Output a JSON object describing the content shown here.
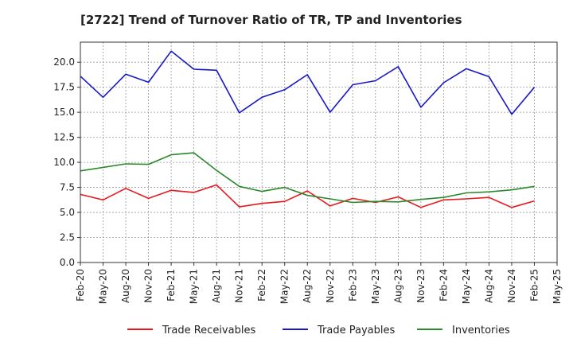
{
  "chart_data": {
    "type": "line",
    "title": "[2722]  Trend of Turnover Ratio of TR, TP and Inventories",
    "xlabel": "",
    "ylabel": "",
    "ylim": [
      0,
      22
    ],
    "yticks": [
      "0.0",
      "2.5",
      "5.0",
      "7.5",
      "10.0",
      "12.5",
      "15.0",
      "17.5",
      "20.0"
    ],
    "categories": [
      "Feb-20",
      "May-20",
      "Aug-20",
      "Nov-20",
      "Feb-21",
      "May-21",
      "Aug-21",
      "Nov-21",
      "Feb-22",
      "May-22",
      "Aug-22",
      "Nov-22",
      "Feb-23",
      "May-23",
      "Aug-23",
      "Nov-23",
      "Feb-24",
      "May-24",
      "Aug-24",
      "Nov-24",
      "Feb-25",
      "May-25"
    ],
    "grid": true,
    "legend_position": "bottom",
    "series": [
      {
        "name": "Trade Receivables",
        "color": "#e8191c",
        "values": [
          6.8,
          6.25,
          7.4,
          6.4,
          7.2,
          7.0,
          7.75,
          5.55,
          5.9,
          6.1,
          7.15,
          5.65,
          6.4,
          6.0,
          6.55,
          5.5,
          6.25,
          6.35,
          6.5,
          5.5,
          6.15,
          null
        ]
      },
      {
        "name": "Trade Payables",
        "color": "#1818c8",
        "values": [
          18.6,
          16.5,
          18.8,
          18.0,
          21.1,
          19.3,
          19.2,
          14.95,
          16.5,
          17.25,
          18.75,
          15.0,
          17.75,
          18.15,
          19.55,
          15.5,
          17.95,
          19.35,
          18.55,
          14.8,
          17.5,
          null
        ]
      },
      {
        "name": "Inventories",
        "color": "#2a8a2a",
        "values": [
          9.15,
          9.5,
          9.85,
          9.8,
          10.75,
          10.95,
          9.2,
          7.6,
          7.1,
          7.5,
          6.7,
          6.35,
          6.0,
          6.1,
          6.05,
          6.3,
          6.5,
          6.95,
          7.05,
          7.25,
          7.6,
          null
        ]
      }
    ]
  }
}
